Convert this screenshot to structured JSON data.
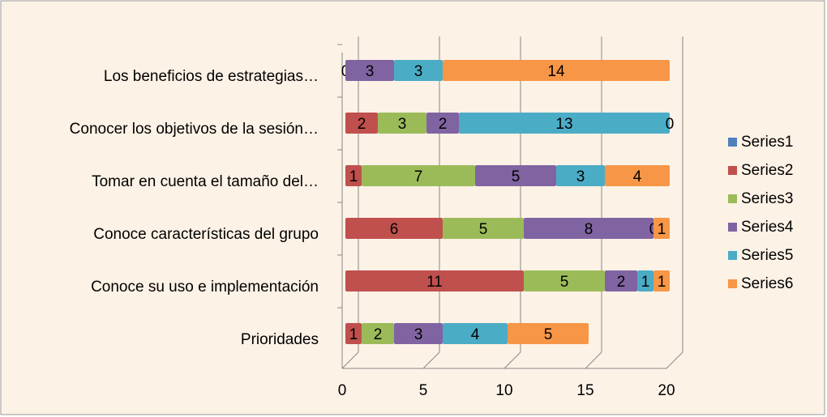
{
  "chart_data": {
    "type": "bar",
    "orientation": "horizontal",
    "stacked": true,
    "categories": [
      "Los beneficios de estrategias…",
      "Conocer los objetivos de la sesión…",
      "Tomar en cuenta el tamaño del…",
      "Conoce características del grupo",
      "Conoce su uso e implementación",
      "Prioridades"
    ],
    "series": [
      {
        "name": "Series1",
        "color": "#4f81bd",
        "values": [
          null,
          null,
          null,
          null,
          null,
          null
        ]
      },
      {
        "name": "Series2",
        "color": "#c0504d",
        "values": [
          null,
          2,
          1,
          6,
          11,
          1
        ]
      },
      {
        "name": "Series3",
        "color": "#9bbb59",
        "values": [
          0,
          3,
          7,
          5,
          5,
          2
        ]
      },
      {
        "name": "Series4",
        "color": "#8064a2",
        "values": [
          3,
          2,
          5,
          8,
          2,
          3
        ]
      },
      {
        "name": "Series5",
        "color": "#4bacc6",
        "values": [
          3,
          13,
          3,
          0,
          1,
          4
        ]
      },
      {
        "name": "Series6",
        "color": "#f79646",
        "values": [
          14,
          0,
          4,
          1,
          1,
          5
        ]
      }
    ],
    "xlim": [
      0,
      20
    ],
    "xticks": [
      0,
      5,
      10,
      15,
      20
    ],
    "grid": true,
    "legend": "right"
  }
}
